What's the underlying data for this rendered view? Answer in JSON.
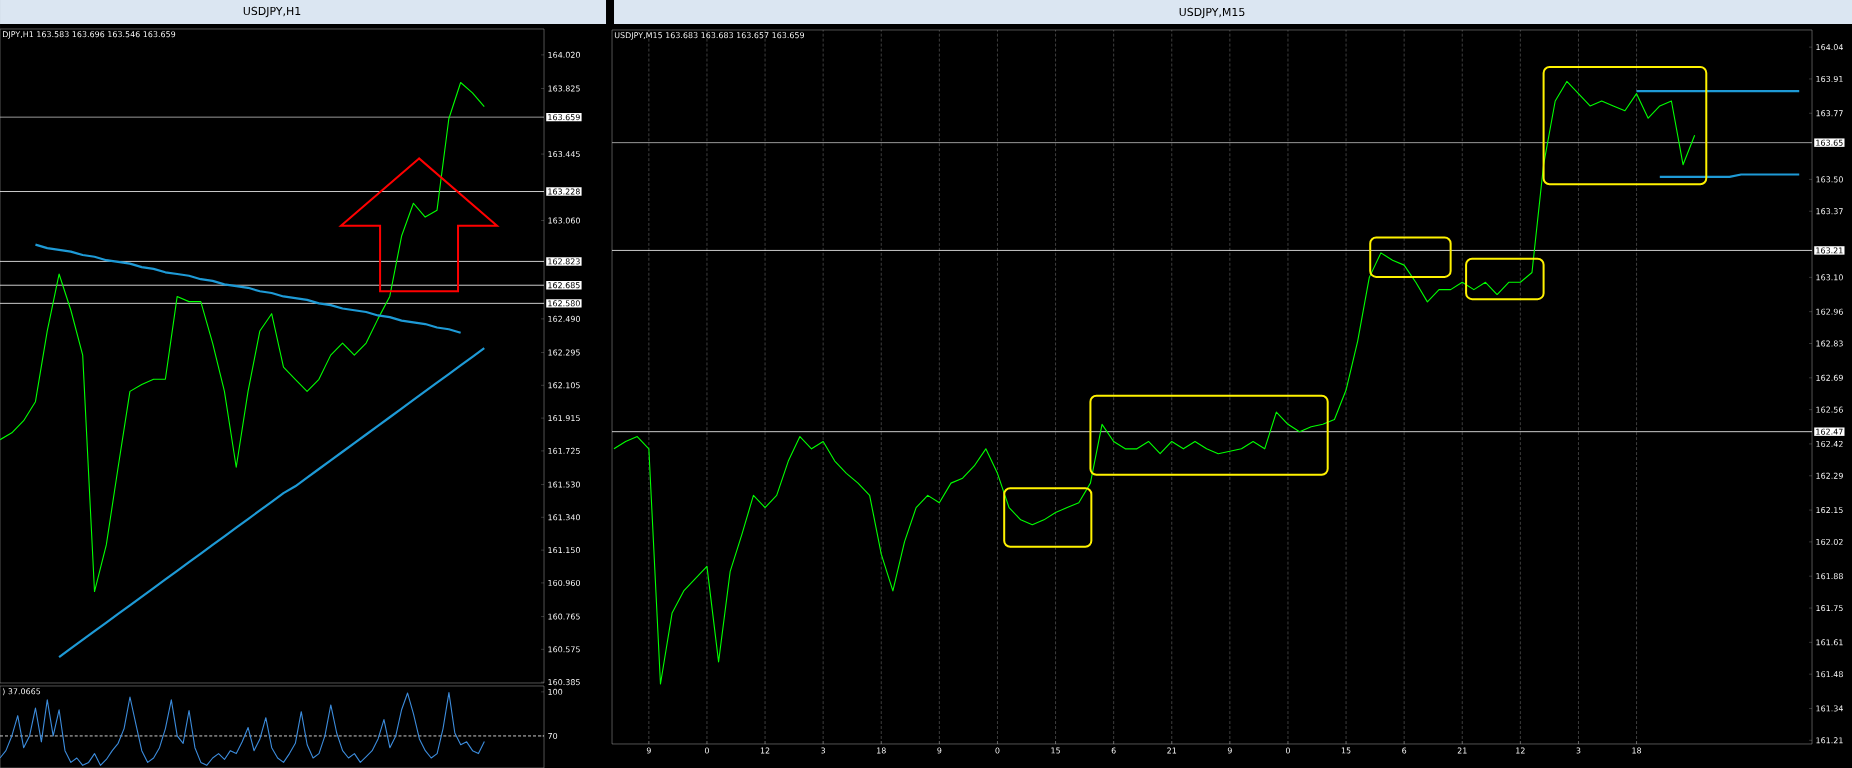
{
  "chart_data": [
    {
      "type": "line",
      "title": "USDJPY,H1",
      "subtitle": "DJPY,H1  163.583 163.696 163.546 163.659",
      "tick_labels": "y",
      "categories": [
        null,
        null,
        null,
        null,
        null,
        null,
        null,
        null,
        null,
        null,
        null,
        null,
        null,
        null,
        null,
        null,
        null,
        null,
        null,
        null,
        null,
        null,
        null,
        null,
        null,
        null,
        null,
        null,
        null,
        null,
        null,
        null,
        null,
        null,
        null,
        null,
        null,
        null,
        null,
        null,
        null,
        null
      ],
      "series": [
        {
          "color": "#00ff00",
          "values": [
            161.79,
            161.83,
            161.9,
            162.01,
            162.42,
            162.75,
            162.54,
            162.28,
            160.91,
            161.18,
            161.63,
            162.07,
            162.11,
            162.14,
            162.14,
            162.62,
            162.59,
            162.59,
            162.35,
            162.07,
            161.63,
            162.07,
            162.42,
            162.52,
            162.21,
            162.14,
            162.07,
            162.14,
            162.28,
            162.35,
            162.28,
            162.35,
            162.49,
            162.62,
            162.97,
            163.16,
            163.08,
            163.12,
            163.65,
            163.86,
            163.8,
            163.72
          ]
        },
        {
          "color": "#1e9ad6",
          "values": [
            null,
            null,
            null,
            162.92,
            162.9,
            162.89,
            162.88,
            162.86,
            162.85,
            162.83,
            162.82,
            162.81,
            162.79,
            162.78,
            162.76,
            162.75,
            162.74,
            162.72,
            162.71,
            162.69,
            162.68,
            162.67,
            162.65,
            162.64,
            162.62,
            162.61,
            162.6,
            162.58,
            162.57,
            162.55,
            162.54,
            162.53,
            162.51,
            162.5,
            162.48,
            162.47,
            162.46,
            162.44,
            162.43,
            162.41,
            null,
            null
          ]
        },
        {
          "color": "#1e9ad6",
          "values": [
            null,
            null,
            null,
            null,
            null,
            160.53,
            160.58,
            160.63,
            160.68,
            160.73,
            160.78,
            160.83,
            160.88,
            160.93,
            160.98,
            161.03,
            161.08,
            161.13,
            161.18,
            161.23,
            161.28,
            161.33,
            161.38,
            161.43,
            161.48,
            161.52,
            161.57,
            161.62,
            161.67,
            161.72,
            161.77,
            161.82,
            161.87,
            161.92,
            161.97,
            162.02,
            162.07,
            162.12,
            162.17,
            162.22,
            162.27,
            162.32
          ]
        }
      ],
      "ylim": [
        160.38,
        164.17
      ],
      "yticks": [
        {
          "value": 164.02,
          "label": "164.020"
        },
        163.825,
        163.445,
        {
          "value": 163.06,
          "label": "163.060"
        },
        {
          "value": 162.49,
          "label": "162.490"
        },
        162.295,
        162.105,
        161.915,
        161.725,
        {
          "value": 161.53,
          "label": "161.530"
        },
        {
          "value": 161.34,
          "label": "161.340"
        },
        {
          "value": 161.15,
          "label": "161.150"
        },
        {
          "value": 160.96,
          "label": "160.960"
        },
        160.765,
        160.575,
        160.385
      ],
      "ref_lines": [
        {
          "axis": "y",
          "value": 163.659,
          "label": "163.659",
          "color": "#c0c0c0"
        },
        {
          "axis": "y",
          "value": 163.228,
          "label": "163.228",
          "color": "#ffffff"
        },
        {
          "axis": "y",
          "value": 162.823,
          "label": "162.823",
          "color": "#ffffff"
        },
        {
          "axis": "y",
          "value": 162.685,
          "label": "162.685",
          "color": "#ffffff"
        },
        {
          "axis": "y",
          "value": 162.58,
          "label": "162.580",
          "color": "#ffffff"
        }
      ]
    },
    {
      "type": "line",
      "tick_labels": "y",
      "annotations": [
        ") 37.0665"
      ],
      "categories": [
        null,
        null,
        null,
        null,
        null,
        null,
        null,
        null,
        null,
        null,
        null,
        null,
        null,
        null,
        null,
        null,
        null,
        null,
        null,
        null,
        null,
        null,
        null,
        null,
        null,
        null,
        null,
        null,
        null,
        null,
        null,
        null,
        null,
        null,
        null,
        null,
        null,
        null,
        null,
        null,
        null,
        null,
        null,
        null,
        null,
        null,
        null,
        null,
        null,
        null,
        null,
        null,
        null,
        null,
        null,
        null,
        null,
        null,
        null,
        null,
        null,
        null,
        null,
        null,
        null,
        null,
        null,
        null,
        null,
        null,
        null,
        null,
        null,
        null,
        null,
        null,
        null,
        null,
        null,
        null,
        null,
        null,
        null
      ],
      "series": [
        {
          "color": "#3c8cdc",
          "values": [
            55,
            60,
            70,
            83.8,
            62,
            70,
            89,
            66,
            94.6,
            70,
            87.8,
            60,
            52,
            55,
            50,
            52,
            58,
            50,
            54,
            60,
            65,
            75,
            96.5,
            78,
            60,
            52,
            55,
            62,
            75,
            94.6,
            70,
            65,
            87.3,
            62,
            52,
            50,
            55,
            58,
            54,
            60,
            58,
            66,
            75.7,
            60,
            68,
            82.4,
            62,
            55,
            52,
            58,
            65,
            86.5,
            64,
            55,
            58,
            70,
            91.1,
            72,
            60,
            55,
            58,
            52,
            56,
            60,
            68,
            81.1,
            62,
            70,
            88,
            99.2,
            85,
            68,
            60,
            55,
            58,
            75,
            99.5,
            72,
            64,
            66,
            60,
            58,
            66.2
          ]
        }
      ],
      "ylim": [
        48.2,
        104
      ],
      "yticks": [
        70,
        100
      ],
      "ref_lines": [
        {
          "axis": "y",
          "value": 70,
          "color": "#ffffff",
          "line_style": "dashed"
        }
      ]
    },
    {
      "type": "line",
      "title": "USDJPY,M15",
      "subtitle": "USDJPY,M15  163.683 163.683 163.657 163.659",
      "grid": "x",
      "categories": [
        null,
        null,
        null,
        "9",
        null,
        null,
        null,
        null,
        "0",
        null,
        null,
        null,
        null,
        "12",
        null,
        null,
        null,
        null,
        "3",
        null,
        null,
        null,
        null,
        "18",
        null,
        null,
        null,
        null,
        "9",
        null,
        null,
        null,
        null,
        "0",
        null,
        null,
        null,
        null,
        "15",
        null,
        null,
        null,
        null,
        "6",
        null,
        null,
        null,
        null,
        "21",
        null,
        null,
        null,
        null,
        "9",
        null,
        null,
        null,
        null,
        "0",
        null,
        null,
        null,
        null,
        "15",
        null,
        null,
        null,
        null,
        "6",
        null,
        null,
        null,
        null,
        "21",
        null,
        null,
        null,
        null,
        "12",
        null,
        null,
        null,
        null,
        "3",
        null,
        null,
        null,
        null,
        "18",
        null,
        null,
        null,
        null,
        null,
        null,
        null,
        null,
        null,
        null,
        null,
        null,
        null,
        null
      ],
      "series": [
        {
          "color": "#00ff00",
          "values": [
            162.4,
            162.43,
            162.45,
            162.4,
            161.44,
            161.73,
            161.82,
            161.87,
            161.92,
            161.53,
            161.9,
            162.05,
            162.21,
            162.16,
            162.21,
            162.35,
            162.45,
            162.4,
            162.43,
            162.35,
            162.3,
            162.26,
            162.21,
            161.97,
            161.82,
            162.02,
            162.16,
            162.21,
            162.18,
            162.26,
            162.28,
            162.33,
            162.4,
            162.3,
            162.16,
            162.11,
            162.09,
            162.11,
            162.14,
            162.16,
            162.18,
            162.26,
            162.5,
            162.43,
            162.4,
            162.4,
            162.43,
            162.38,
            162.43,
            162.4,
            162.43,
            162.4,
            162.38,
            162.39,
            162.4,
            162.43,
            162.4,
            162.55,
            162.5,
            162.47,
            162.49,
            162.5,
            162.52,
            162.64,
            162.84,
            163.1,
            163.2,
            163.17,
            163.15,
            163.08,
            163.0,
            163.05,
            163.05,
            163.08,
            163.05,
            163.08,
            163.03,
            163.08,
            163.08,
            163.12,
            163.56,
            163.82,
            163.9,
            163.85,
            163.8,
            163.82,
            163.8,
            163.78,
            163.85,
            163.75,
            163.8,
            163.82,
            163.56,
            163.68,
            null,
            null,
            null,
            null,
            null,
            null,
            null,
            null,
            null
          ]
        },
        {
          "color": "#1e9ad6",
          "values": [
            null,
            null,
            null,
            null,
            null,
            null,
            null,
            null,
            null,
            null,
            null,
            null,
            null,
            null,
            null,
            null,
            null,
            null,
            null,
            null,
            null,
            null,
            null,
            null,
            null,
            null,
            null,
            null,
            null,
            null,
            null,
            null,
            null,
            null,
            null,
            null,
            null,
            null,
            null,
            null,
            null,
            null,
            null,
            null,
            null,
            null,
            null,
            null,
            null,
            null,
            null,
            null,
            null,
            null,
            null,
            null,
            null,
            null,
            null,
            null,
            null,
            null,
            null,
            null,
            null,
            null,
            null,
            null,
            null,
            null,
            null,
            null,
            null,
            null,
            null,
            null,
            null,
            null,
            null,
            null,
            null,
            null,
            null,
            null,
            null,
            null,
            null,
            null,
            163.86,
            163.86,
            163.86,
            163.86,
            163.86,
            163.86,
            163.86,
            163.86,
            163.86,
            163.86,
            163.86,
            163.86,
            163.86,
            163.86,
            163.86
          ]
        },
        {
          "color": "#1e9ad6",
          "values": [
            null,
            null,
            null,
            null,
            null,
            null,
            null,
            null,
            null,
            null,
            null,
            null,
            null,
            null,
            null,
            null,
            null,
            null,
            null,
            null,
            null,
            null,
            null,
            null,
            null,
            null,
            null,
            null,
            null,
            null,
            null,
            null,
            null,
            null,
            null,
            null,
            null,
            null,
            null,
            null,
            null,
            null,
            null,
            null,
            null,
            null,
            null,
            null,
            null,
            null,
            null,
            null,
            null,
            null,
            null,
            null,
            null,
            null,
            null,
            null,
            null,
            null,
            null,
            null,
            null,
            null,
            null,
            null,
            null,
            null,
            null,
            null,
            null,
            null,
            null,
            null,
            null,
            null,
            null,
            null,
            null,
            null,
            null,
            null,
            null,
            null,
            null,
            null,
            null,
            null,
            163.51,
            163.51,
            163.51,
            163.51,
            163.51,
            163.51,
            163.51,
            163.52,
            163.52,
            163.52,
            163.52,
            163.52,
            163.52
          ]
        }
      ],
      "ylim": [
        161.195,
        164.11
      ],
      "yticks": [
        161.21,
        161.34,
        161.48,
        161.61,
        161.75,
        161.88,
        162.02,
        162.15,
        162.29,
        162.42,
        162.56,
        162.69,
        162.83,
        162.96,
        {
          "value": 163.1,
          "label": "163.10"
        },
        163.37,
        {
          "value": 163.5,
          "label": "163.50"
        },
        163.77,
        163.91,
        164.04
      ],
      "ref_lines": [
        {
          "axis": "y",
          "value": 163.65,
          "label": "163.65",
          "color": "#c0c0c0"
        },
        {
          "axis": "y",
          "value": 163.21,
          "label": "163.21",
          "color": "#ffffff"
        },
        {
          "axis": "y",
          "value": 162.47,
          "label": "162.47",
          "color": "#ffffff"
        }
      ]
    }
  ]
}
